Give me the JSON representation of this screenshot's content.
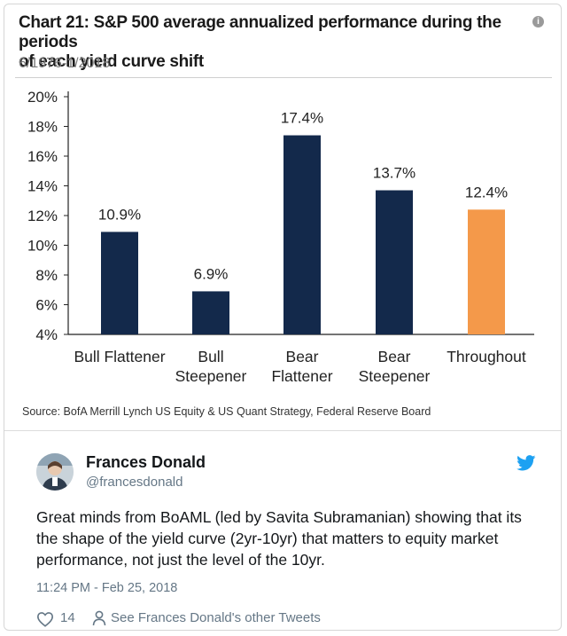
{
  "chart": {
    "title_line1": "Chart 21: S&P 500 average annualized performance during the periods",
    "title_line2": "of each yield curve shift",
    "subtitle": "6/1976-1/2018",
    "source": "Source: BofA Merrill Lynch US Equity & US Quant Strategy, Federal Reserve Board",
    "info_icon": "info-circle-icon"
  },
  "chart_data": {
    "type": "bar",
    "title": "Chart 21: S&P 500 average annualized performance during the periods of each yield curve shift",
    "subtitle": "6/1976-1/2018",
    "categories": [
      [
        "Bull Flattener"
      ],
      [
        "Bull",
        "Steepener"
      ],
      [
        "Bear",
        "Flattener"
      ],
      [
        "Bear",
        "Steepener"
      ],
      [
        "Throughout"
      ]
    ],
    "values": [
      10.9,
      6.9,
      17.4,
      13.7,
      12.4
    ],
    "labels": [
      "10.9%",
      "6.9%",
      "17.4%",
      "13.7%",
      "12.4%"
    ],
    "colors": [
      "#13294b",
      "#13294b",
      "#13294b",
      "#13294b",
      "#f4994a"
    ],
    "ylim": [
      4,
      20
    ],
    "yticks": [
      4,
      6,
      8,
      10,
      12,
      14,
      16,
      18,
      20
    ],
    "ytick_labels": [
      "4%",
      "6%",
      "8%",
      "10%",
      "12%",
      "14%",
      "16%",
      "18%",
      "20%"
    ],
    "xlabel": "",
    "ylabel": "",
    "grid": false,
    "legend": false
  },
  "tweet": {
    "author_name": "Frances Donald",
    "author_handle": "@francesdonald",
    "text": "Great minds from BoAML (led by Savita Subramanian) showing that its the shape of the yield curve (2yr-10yr) that matters to equity market performance, not just the level of the 10yr.",
    "timestamp": "11:24 PM - Feb 25, 2018",
    "like_count": "14",
    "other_tweets_link": "See Frances Donald's other Tweets",
    "brand_color": "#1da1f2",
    "icons": [
      "twitter-bird-icon",
      "heart-icon",
      "person-icon"
    ]
  }
}
